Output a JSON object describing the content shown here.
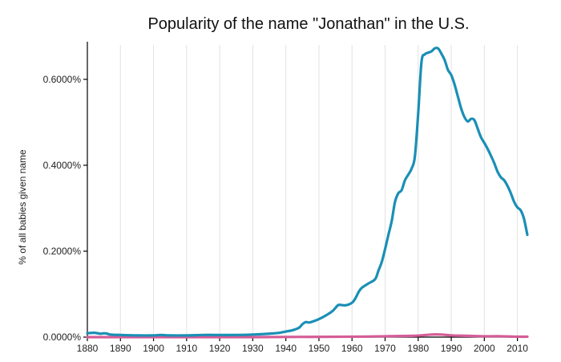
{
  "chart_data": {
    "type": "line",
    "title": "Popularity of the name \"Jonathan\" in the U.S.",
    "xlabel": "",
    "ylabel": "% of all babies given name",
    "xlim": [
      1880,
      2013
    ],
    "ylim": [
      0,
      0.0068
    ],
    "x_ticks": [
      1880,
      1890,
      1900,
      1910,
      1920,
      1930,
      1940,
      1950,
      1960,
      1970,
      1980,
      1990,
      2000,
      2010
    ],
    "y_ticks": [
      0,
      0.002,
      0.004,
      0.006
    ],
    "y_tick_labels": [
      "0.0000%",
      "0.2000%",
      "0.4000%",
      "0.6000%"
    ],
    "grid": "vertical",
    "legend": "none",
    "series": [
      {
        "color": "#1a8fb5",
        "x": [
          1880,
          1882,
          1884,
          1885,
          1886,
          1887,
          1890,
          1895,
          1900,
          1902,
          1905,
          1910,
          1915,
          1920,
          1925,
          1930,
          1935,
          1938,
          1940,
          1942,
          1944,
          1945,
          1946,
          1947,
          1948,
          1950,
          1952,
          1954,
          1955,
          1956,
          1958,
          1960,
          1961,
          1962,
          1963,
          1965,
          1967,
          1968,
          1969,
          1970,
          1971,
          1972,
          1973,
          1974,
          1975,
          1976,
          1977,
          1978,
          1979,
          1980,
          1981,
          1982,
          1983,
          1984,
          1985,
          1986,
          1987,
          1988,
          1989,
          1990,
          1991,
          1992,
          1993,
          1994,
          1995,
          1996,
          1997,
          1998,
          1999,
          2000,
          2001,
          2002,
          2003,
          2004,
          2005,
          2006,
          2007,
          2008,
          2009,
          2010,
          2011,
          2012,
          2013
        ],
        "values": [
          9e-05,
          0.0001,
          8e-05,
          9e-05,
          8e-05,
          6e-05,
          5e-05,
          4e-05,
          4e-05,
          5e-05,
          4e-05,
          4e-05,
          5e-05,
          5e-05,
          5e-05,
          6e-05,
          8e-05,
          0.0001,
          0.00013,
          0.00016,
          0.00022,
          0.0003,
          0.00035,
          0.00034,
          0.00036,
          0.00042,
          0.0005,
          0.0006,
          0.00068,
          0.00075,
          0.00074,
          0.0008,
          0.0009,
          0.00105,
          0.00115,
          0.00125,
          0.00135,
          0.00155,
          0.00175,
          0.00205,
          0.00238,
          0.0027,
          0.00315,
          0.00335,
          0.00342,
          0.00365,
          0.00378,
          0.00392,
          0.0042,
          0.0052,
          0.0064,
          0.00658,
          0.00662,
          0.00665,
          0.00672,
          0.00672,
          0.0066,
          0.00645,
          0.00622,
          0.0061,
          0.00588,
          0.0056,
          0.00532,
          0.00512,
          0.00502,
          0.00508,
          0.00505,
          0.00485,
          0.00465,
          0.00452,
          0.00438,
          0.00422,
          0.00405,
          0.00385,
          0.00372,
          0.00365,
          0.00352,
          0.00335,
          0.00315,
          0.00302,
          0.00295,
          0.00275,
          0.00238
        ]
      },
      {
        "color": "#d45d97",
        "x": [
          1880,
          1930,
          1960,
          1970,
          1978,
          1981,
          1984,
          1987,
          1990,
          1995,
          2000,
          2005,
          2010,
          2013
        ],
        "values": [
          0,
          0,
          1e-05,
          2e-05,
          3e-05,
          4e-05,
          6e-05,
          6e-05,
          4e-05,
          3e-05,
          2e-05,
          2e-05,
          1e-05,
          1e-05
        ]
      }
    ]
  }
}
